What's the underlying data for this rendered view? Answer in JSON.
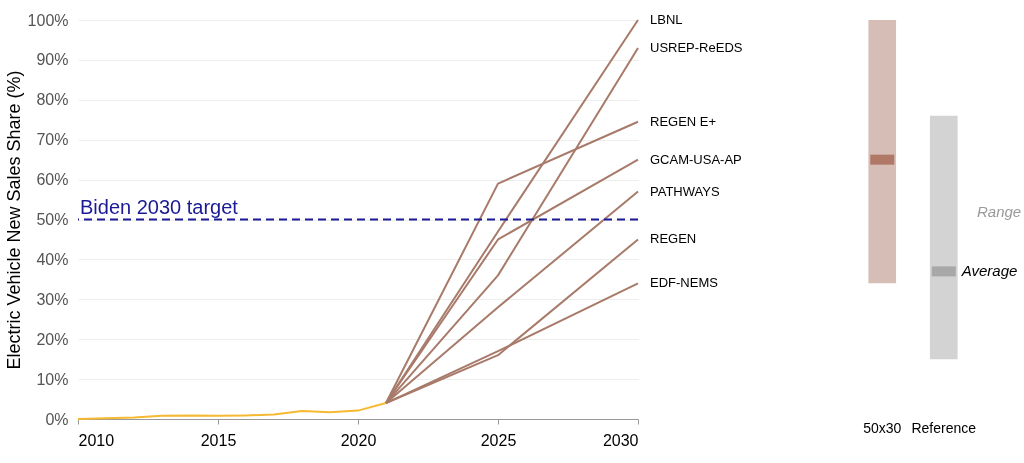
{
  "chart_data": [
    {
      "type": "line",
      "ylabel": "Electric Vehicle New Sales Share (%)",
      "xlim": [
        2010,
        2030
      ],
      "xticks": [
        2010,
        2015,
        2020,
        2025,
        2030
      ],
      "ylim": [
        0,
        100
      ],
      "yticks": [
        {
          "value": 0,
          "label": "0%"
        },
        {
          "value": 10,
          "label": "10%"
        },
        {
          "value": 20,
          "label": "20%"
        },
        {
          "value": 30,
          "label": "30%"
        },
        {
          "value": 40,
          "label": "40%"
        },
        {
          "value": 50,
          "label": "50%"
        },
        {
          "value": 60,
          "label": "60%"
        },
        {
          "value": 70,
          "label": "70%"
        },
        {
          "value": 80,
          "label": "80%"
        },
        {
          "value": 90,
          "label": "90%"
        },
        {
          "value": 100,
          "label": "100%"
        }
      ],
      "grid": "y",
      "series": [
        {
          "type": "line",
          "color": "#f5b932",
          "x": [
            2010,
            2011,
            2012,
            2013,
            2014,
            2015,
            2016,
            2017,
            2018,
            2019,
            2020,
            2021
          ],
          "values": [
            0,
            0.2,
            0.4,
            0.8,
            0.9,
            0.8,
            0.9,
            1.1,
            2.0,
            1.7,
            2.1,
            4
          ]
        },
        {
          "name": "LBNL",
          "color": "#a87a6a",
          "x": [
            2021,
            2025,
            2030
          ],
          "values": [
            4,
            47,
            100
          ]
        },
        {
          "name": "USREP-ReEDS",
          "color": "#a87a6a",
          "x": [
            2021,
            2025,
            2030
          ],
          "values": [
            4,
            36,
            93
          ]
        },
        {
          "name": "REGEN E+",
          "color": "#a87a6a",
          "x": [
            2021,
            2025,
            2030
          ],
          "values": [
            4,
            59,
            74.5
          ]
        },
        {
          "name": "GCAM-USA-AP",
          "color": "#a87a6a",
          "x": [
            2021,
            2025,
            2030
          ],
          "values": [
            4,
            45,
            65
          ]
        },
        {
          "name": "PATHWAYS",
          "color": "#a87a6a",
          "x": [
            2021,
            2025,
            2030
          ],
          "values": [
            4,
            28,
            57
          ]
        },
        {
          "name": "REGEN",
          "color": "#a87a6a",
          "x": [
            2021,
            2025,
            2030
          ],
          "values": [
            4,
            16,
            45
          ]
        },
        {
          "name": "EDF-NEMS",
          "color": "#a87a6a",
          "x": [
            2021,
            2025,
            2030
          ],
          "values": [
            4,
            17,
            34
          ]
        }
      ],
      "ref_lines": [
        {
          "axis": "y",
          "value": 50,
          "label": "Biden 2030 target",
          "color": "#1a1a96",
          "line_style": "dashed"
        }
      ]
    },
    {
      "type": "bar",
      "categories": [
        "50x30",
        "Reference"
      ],
      "ylim": [
        0,
        100
      ],
      "tick_labels": "x",
      "series": [
        {
          "type": "bar",
          "base": [
            34,
            15
          ],
          "values": [
            66,
            61
          ],
          "colors": [
            "#d6beb6",
            "#d3d3d3"
          ]
        },
        {
          "type": "scatter",
          "marker": "square",
          "x": [
            "50x30",
            "Reference"
          ],
          "values": [
            65,
            37
          ],
          "colors": [
            "#a05a45",
            "#969696"
          ]
        }
      ],
      "annotations": [
        "Range",
        {
          "text": "Average",
          "x": "Reference",
          "y": 37
        }
      ]
    }
  ]
}
